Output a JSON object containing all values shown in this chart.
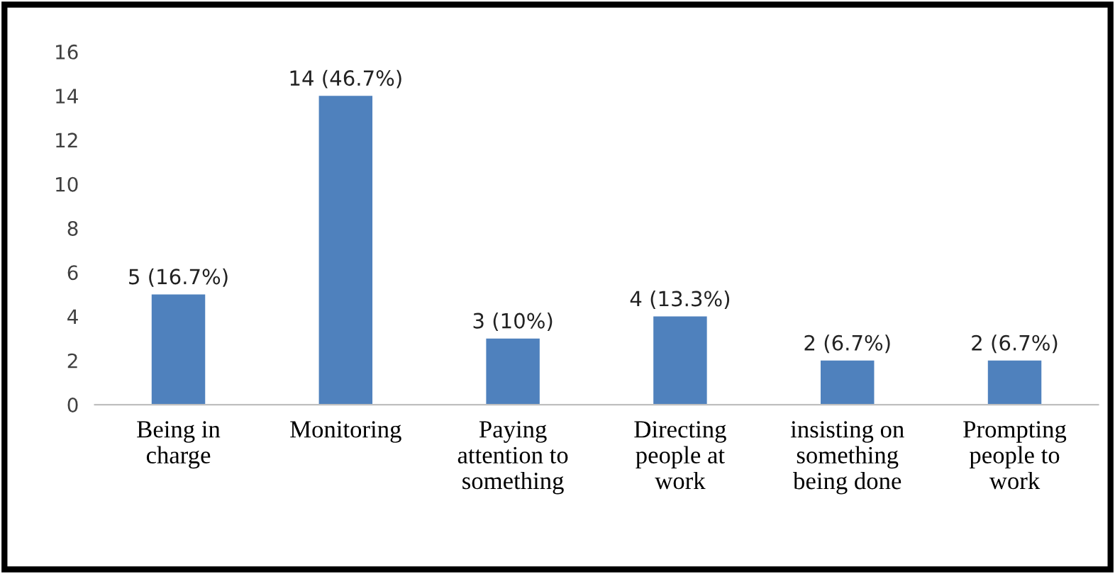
{
  "chart_data": {
    "type": "bar",
    "categories": [
      "Being in\ncharge",
      "Monitoring",
      "Paying\nattention to\nsomething",
      "Directing\npeople at\nwork",
      "insisting on\nsomething\nbeing done",
      "Prompting\npeople to\nwork"
    ],
    "values": [
      5,
      14,
      3,
      4,
      2,
      2
    ],
    "value_labels": [
      "5 (16.7%)",
      "14 (46.7%)",
      "3 (10%)",
      "4 (13.3%)",
      "2 (6.7%)",
      "2 (6.7%)"
    ],
    "color": "#4f81bd",
    "ylim": [
      0,
      16
    ],
    "yticks": [
      0,
      2,
      4,
      6,
      8,
      10,
      12,
      14,
      16
    ],
    "grid": false,
    "legend": false
  }
}
